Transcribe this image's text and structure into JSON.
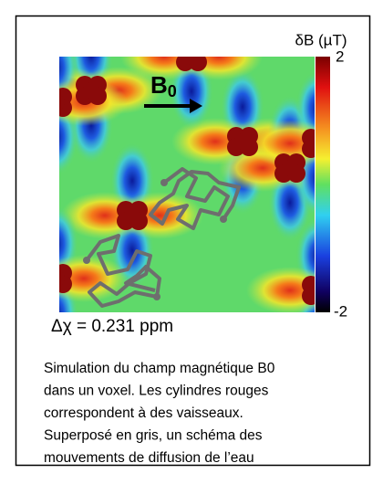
{
  "colorbar": {
    "label": "δB (µT)",
    "max": "2",
    "min": "-2"
  },
  "field_label": {
    "main": "B",
    "sub": "0"
  },
  "susceptibility": "Δχ = 0.231 ppm",
  "caption": {
    "lines": [
      "Simulation du champ magnétique B0",
      "dans un voxel. Les cylindres rouges",
      "correspondent à des vaisseaux.",
      "Superposé en gris, un schéma des",
      "mouvements de diffusion de l’eau"
    ]
  }
}
